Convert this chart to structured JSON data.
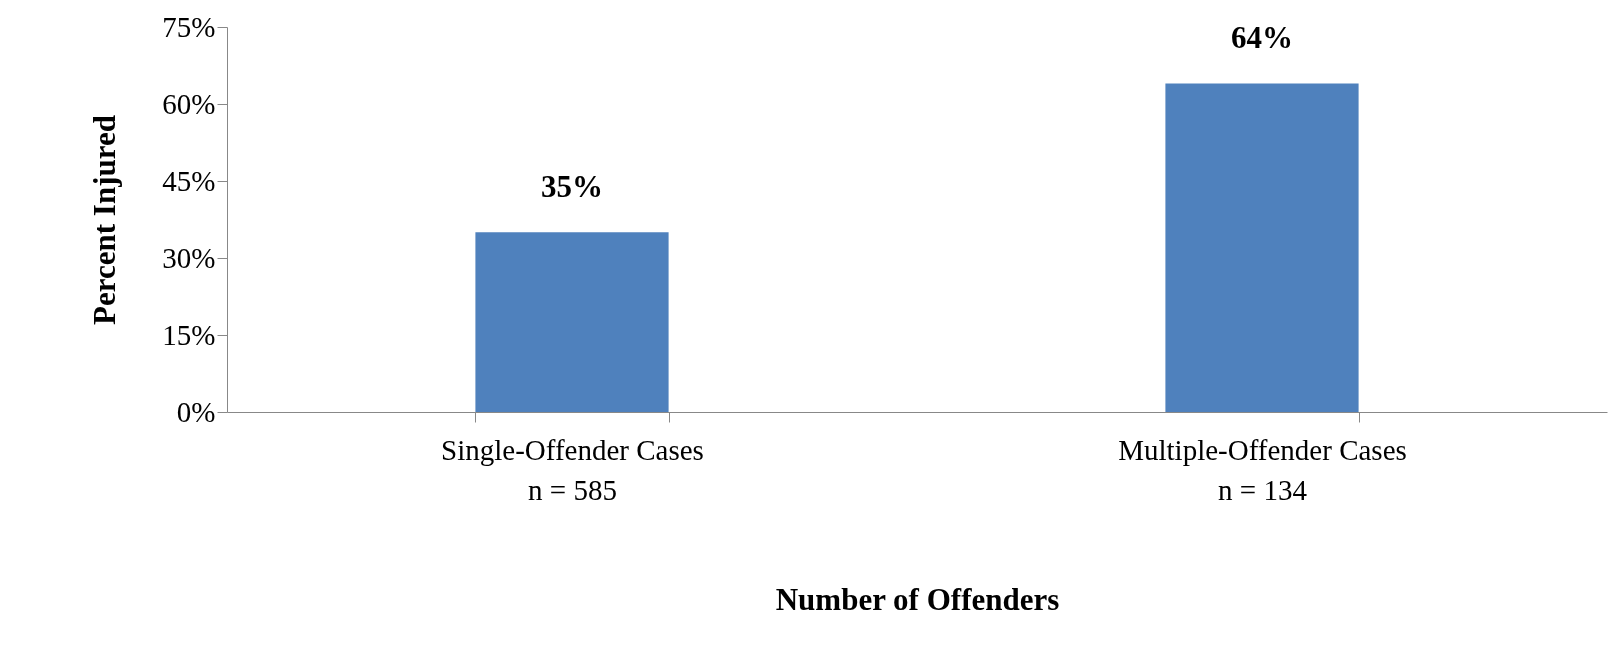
{
  "chart_data": {
    "type": "bar",
    "xlabel": "Number of Offenders",
    "ylabel": "Percent Injured",
    "categories": [
      "Single-Offender Cases\nn = 585",
      "Multiple-Offender Cases\nn = 134"
    ],
    "values": [
      35,
      64
    ],
    "color": "#4f81bd",
    "value_labels": [
      "35%",
      "64%"
    ],
    "ylim": [
      0,
      75
    ],
    "yticks": [
      {
        "value": 0,
        "label": "0%"
      },
      {
        "value": 15,
        "label": "15%"
      },
      {
        "value": 30,
        "label": "30%"
      },
      {
        "value": 45,
        "label": "45%"
      },
      {
        "value": 60,
        "label": "60%"
      },
      {
        "value": 75,
        "label": "75%"
      }
    ],
    "grid": false
  }
}
